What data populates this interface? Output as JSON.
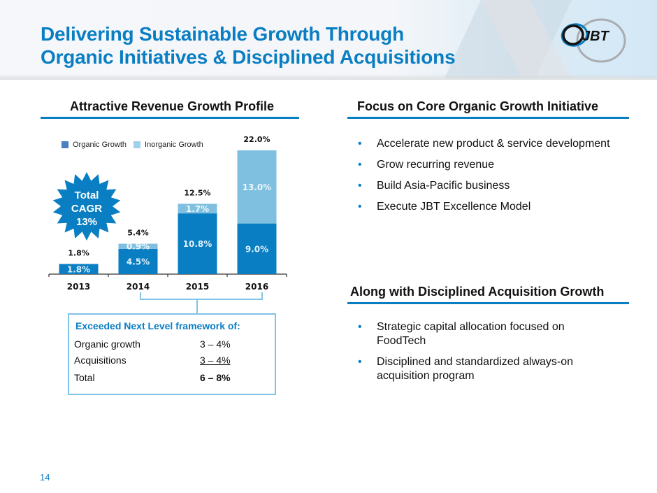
{
  "header": {
    "title_line1": "Delivering Sustainable Growth Through",
    "title_line2": "Organic Initiatives & Disciplined Acquisitions",
    "logo_text": "JBT",
    "logo_icon": "jbt-logo-icon"
  },
  "left": {
    "heading": "Attractive Revenue Growth Profile",
    "badge": {
      "line1": "Total",
      "line2": "CAGR",
      "line3": "13%"
    },
    "framework": {
      "heading": "Exceeded Next Level framework of:",
      "rows": [
        {
          "label": "Organic growth",
          "value": "3 – 4%"
        },
        {
          "label": "Acquisitions",
          "value": "3 – 4%"
        },
        {
          "label": "Total",
          "value": "6 – 8%"
        }
      ]
    }
  },
  "right": {
    "organic": {
      "heading": "Focus on Core Organic Growth Initiative",
      "bullets": [
        "Accelerate new product & service development",
        "Grow recurring revenue",
        "Build Asia-Pacific business",
        "Execute JBT Excellence Model"
      ]
    },
    "acquisition": {
      "heading": "Along with Disciplined Acquisition Growth",
      "bullets": [
        "Strategic capital allocation focused on FoodTech",
        "Disciplined and standardized always-on acquisition program"
      ]
    }
  },
  "colors": {
    "accent": "#0a7ec3",
    "organic": "#0a7ec3",
    "inorganic": "#7fc0e0",
    "legend_organic": "#4a7fc0",
    "legend_inorganic": "#9fd0ec"
  },
  "page_number": "14",
  "chart_data": {
    "type": "bar",
    "stacked": true,
    "title": "Attractive Revenue Growth Profile",
    "categories": [
      "2013",
      "2014",
      "2015",
      "2016"
    ],
    "series": [
      {
        "name": "Organic Growth",
        "values": [
          1.8,
          4.5,
          10.8,
          9.0
        ],
        "labels": [
          "1.8%",
          "4.5%",
          "10.8%",
          "9.0%"
        ]
      },
      {
        "name": "Inorganic Growth",
        "values": [
          0.0,
          0.9,
          1.7,
          13.0
        ],
        "labels": [
          "",
          "0.9%",
          "1.7%",
          "13.0%"
        ]
      }
    ],
    "totals": [
      1.8,
      5.4,
      12.5,
      22.0
    ],
    "total_labels": [
      "1.8%",
      "5.4%",
      "12.5%",
      "22.0%"
    ],
    "xlabel": "",
    "ylabel": "",
    "ylim": [
      0,
      22
    ],
    "grid": false,
    "legend": "top-left"
  }
}
